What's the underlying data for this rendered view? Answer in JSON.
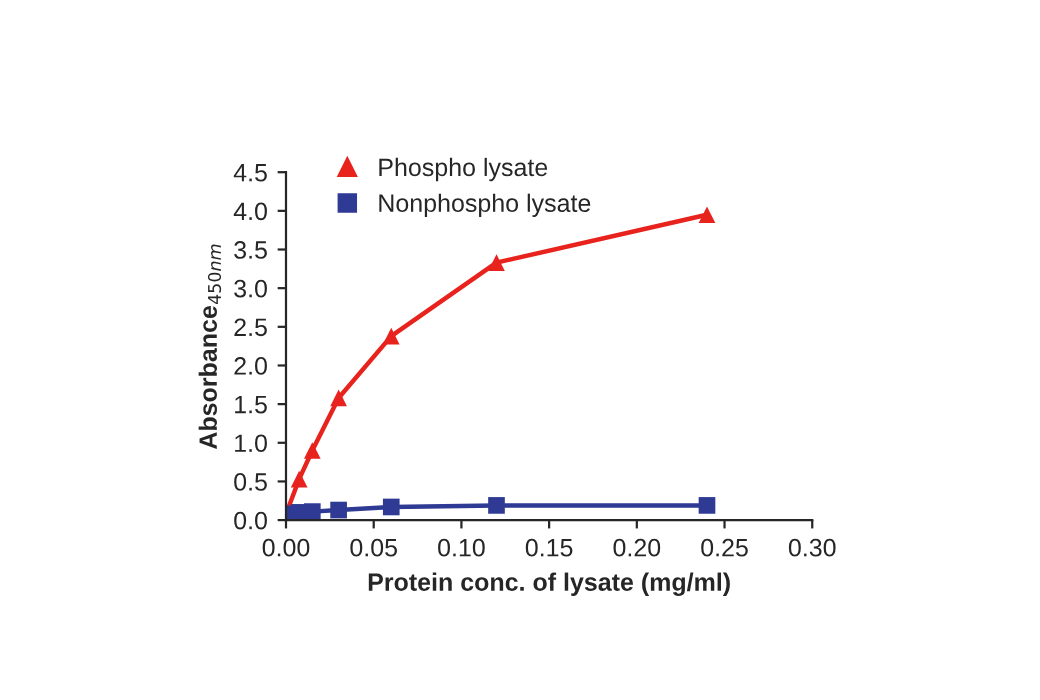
{
  "chart_data": {
    "type": "line",
    "xlabel": "Protein conc. of lysate (mg/ml)",
    "ylabel": "Absorbance$_{450nm}$",
    "xlim": [
      0,
      0.3
    ],
    "xticks": [
      {
        "value": 0,
        "label": "0.00"
      },
      {
        "value": 0.05,
        "label": "0.05"
      },
      {
        "value": 0.1,
        "label": "0.10"
      },
      {
        "value": 0.15,
        "label": "0.15"
      },
      {
        "value": 0.2,
        "label": "0.20"
      },
      {
        "value": 0.25,
        "label": "0.25"
      },
      {
        "value": 0.3,
        "label": "0.30"
      }
    ],
    "ylim": [
      0,
      4.5
    ],
    "yticks": [
      {
        "value": 0,
        "label": "0.0"
      },
      {
        "value": 0.5,
        "label": "0.5"
      },
      {
        "value": 1,
        "label": "1.0"
      },
      {
        "value": 1.5,
        "label": "1.5"
      },
      {
        "value": 2,
        "label": "2.0"
      },
      {
        "value": 2.5,
        "label": "2.5"
      },
      {
        "value": 3,
        "label": "3.0"
      },
      {
        "value": 3.5,
        "label": "3.5"
      },
      {
        "value": 4,
        "label": "4.0"
      },
      {
        "value": 4.5,
        "label": "4.5"
      }
    ],
    "x": [
      0,
      0.0075,
      0.015,
      0.03,
      0.06,
      0.12,
      0.24
    ],
    "series": [
      {
        "name": "Phospho lysate",
        "color": "#e8221c",
        "marker": "triangle",
        "values": [
          0.08,
          0.53,
          0.9,
          1.58,
          2.38,
          3.33,
          3.95
        ]
      },
      {
        "name": "Nonphospho lysate",
        "color": "#2e3a94",
        "marker": "square",
        "values": [
          0.08,
          0.1,
          0.11,
          0.13,
          0.17,
          0.19,
          0.19
        ]
      }
    ],
    "legend": "top left",
    "grid": false
  }
}
